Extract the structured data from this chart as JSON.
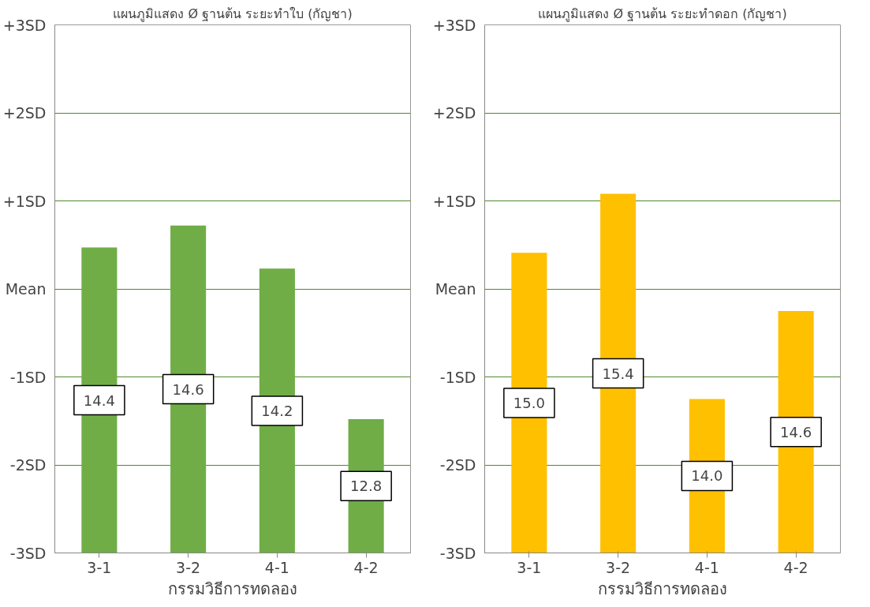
{
  "chart_data": [
    {
      "type": "bar",
      "title": "แผนภูมิแสดง Ø ฐานต้น ระยะทำใบ (กัญชา)",
      "xlabel": "กรรมวิธีการทดลอง",
      "categories": [
        "3-1",
        "3-2",
        "4-1",
        "4-2"
      ],
      "series": [
        {
          "color": "#70ad47",
          "values": [
            3.47,
            3.72,
            3.23,
            1.52
          ],
          "base": [
            -3,
            -3,
            -3,
            -3
          ]
        }
      ],
      "annotations": [
        "14.4",
        "14.6",
        "14.2",
        "12.8"
      ],
      "ylim": [
        -3,
        3
      ],
      "yticks": [
        {
          "value": -3,
          "label": "-3SD"
        },
        {
          "value": -2,
          "label": "-2SD"
        },
        {
          "value": -1,
          "label": "-1SD"
        },
        {
          "value": 0,
          "label": "Mean"
        },
        {
          "value": 1,
          "label": "+1SD"
        },
        {
          "value": 2,
          "label": "+2SD"
        },
        {
          "value": 3,
          "label": "+3SD"
        }
      ],
      "grid": "y"
    },
    {
      "type": "bar",
      "title": "แผนภูมิแสดง Ø ฐานต้น ระยะทำดอก (กัญชา)",
      "xlabel": "กรรมวิธีการทดลอง",
      "categories": [
        "3-1",
        "3-2",
        "4-1",
        "4-2"
      ],
      "series": [
        {
          "color": "#ffc000",
          "values": [
            3.41,
            4.08,
            1.75,
            2.75
          ],
          "base": [
            -3,
            -3,
            -3,
            -3
          ]
        }
      ],
      "annotations": [
        "15.0",
        "15.4",
        "14.0",
        "14.6"
      ],
      "ylim": [
        -3,
        3
      ],
      "yticks": [
        {
          "value": -3,
          "label": "-3SD"
        },
        {
          "value": -2,
          "label": "-2SD"
        },
        {
          "value": -1,
          "label": "-1SD"
        },
        {
          "value": 0,
          "label": "Mean"
        },
        {
          "value": 1,
          "label": "+1SD"
        },
        {
          "value": 2,
          "label": "+2SD"
        },
        {
          "value": 3,
          "label": "+3SD"
        }
      ],
      "grid": "y"
    }
  ]
}
